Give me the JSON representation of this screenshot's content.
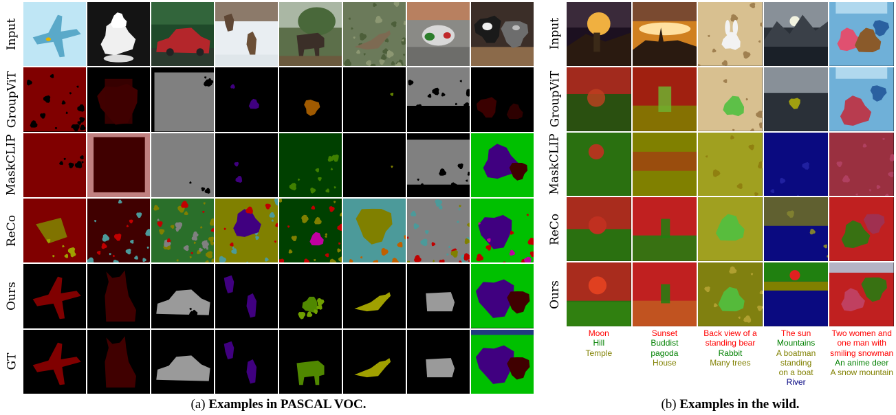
{
  "panel_a": {
    "row_labels": [
      "Input",
      "GroupViT",
      "MaskCLIP",
      "ReCo",
      "Ours",
      "GT"
    ],
    "caption_prefix": "(a)",
    "caption_text": "Examples in PASCAL VOC."
  },
  "panel_b": {
    "row_labels": [
      "Input",
      "GroupViT",
      "MaskCLIP",
      "ReCo",
      "Ours"
    ],
    "caption_prefix": "(b)",
    "caption_text": "Examples in the wild.",
    "prompts": [
      [
        {
          "text": "Moon",
          "color": "#ff0000"
        },
        {
          "text": "Hill",
          "color": "#008000"
        },
        {
          "text": "Temple",
          "color": "#808000"
        }
      ],
      [
        {
          "text": "Sunset",
          "color": "#ff0000"
        },
        {
          "text": "Buddist",
          "color": "#008000"
        },
        {
          "text": "pagoda",
          "color": "#008000"
        },
        {
          "text": "House",
          "color": "#808000"
        }
      ],
      [
        {
          "text": "Back view of a",
          "color": "#ff0000"
        },
        {
          "text": "standing bear",
          "color": "#ff0000"
        },
        {
          "text": "Rabbit",
          "color": "#008000"
        },
        {
          "text": "Many trees",
          "color": "#808000"
        }
      ],
      [
        {
          "text": "The sun",
          "color": "#ff0000"
        },
        {
          "text": "Mountains",
          "color": "#008000"
        },
        {
          "text": "A boatman",
          "color": "#808000"
        },
        {
          "text": "standing",
          "color": "#808000"
        },
        {
          "text": "on a boat",
          "color": "#808000"
        },
        {
          "text": "River",
          "color": "#000080"
        }
      ],
      [
        {
          "text": "Two women and",
          "color": "#ff0000"
        },
        {
          "text": "one man with",
          "color": "#ff0000"
        },
        {
          "text": "smiling snowman",
          "color": "#ff0000"
        },
        {
          "text": "An anime deer",
          "color": "#008000"
        },
        {
          "text": "A snow mountain",
          "color": "#808000"
        }
      ]
    ]
  },
  "colors": {
    "voc_aeroplane": "#800000",
    "voc_cat": "#400000",
    "voc_car": "#808080",
    "voc_dog": "#400080",
    "voc_cow": "#408000",
    "voc_bird": "#808000",
    "voc_person": "#c08080",
    "groupvit_cow": "#a05a00"
  }
}
